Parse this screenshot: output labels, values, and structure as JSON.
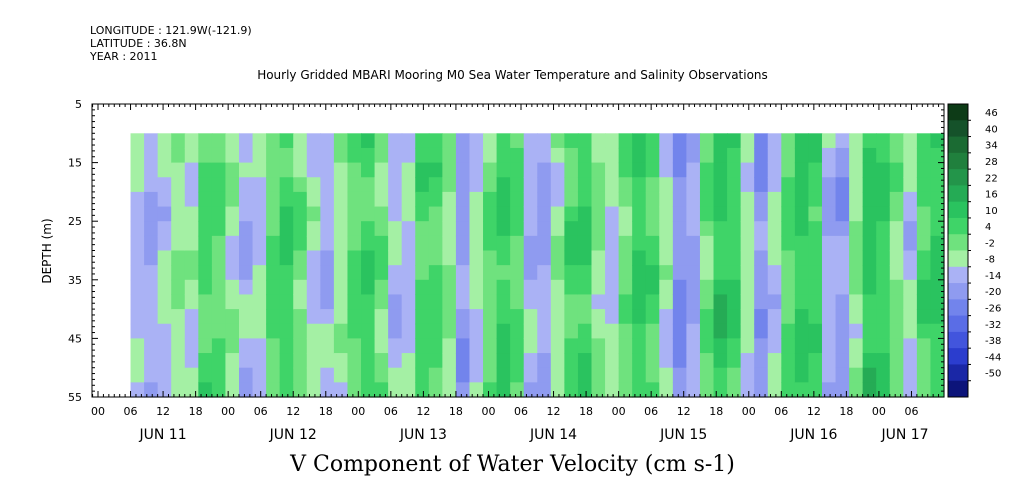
{
  "header": {
    "longitude": "LONGITUDE : 121.9W(-121.9)",
    "latitude": "LATITUDE : 36.8N",
    "year": "YEAR : 2011",
    "title": "Hourly Gridded MBARI Mooring M0 Sea Water Temperature and Salinity Observations"
  },
  "chart_data": {
    "type": "heatmap",
    "title": "Hourly Gridded MBARI Mooring M0 Sea Water Temperature and Salinity Observations",
    "xlabel": "",
    "ylabel": "DEPTH (m)",
    "variable_label": "V Component of Water Velocity (cm s-1)",
    "ylim": [
      55,
      5
    ],
    "y_ticks": [
      "5",
      "15",
      "25",
      "35",
      "45",
      "55"
    ],
    "x_hour_ticks": [
      "00",
      "06",
      "12",
      "18",
      "00",
      "06",
      "12",
      "18",
      "00",
      "06",
      "12",
      "18",
      "00",
      "06",
      "12",
      "18",
      "00",
      "06",
      "12",
      "18",
      "00",
      "06",
      "12",
      "18",
      "00",
      "06"
    ],
    "x_day_labels": [
      "JUN 11",
      "JUN 12",
      "JUN 13",
      "JUN 14",
      "JUN 15",
      "JUN 16",
      "JUN 17"
    ],
    "data_start_hour": 6,
    "data_depth_range": [
      10,
      55
    ],
    "colorbar_labels": [
      "46",
      "40",
      "34",
      "28",
      "22",
      "16",
      "10",
      "4",
      "-2",
      "-8",
      "-14",
      "-20",
      "-26",
      "-32",
      "-38",
      "-44",
      "-50"
    ],
    "colorbar_colors": [
      "#0d3b17",
      "#15522a",
      "#1b6b33",
      "#20803d",
      "#23954a",
      "#25ab55",
      "#2ac35f",
      "#3fd468",
      "#6fe27e",
      "#a4f0a4",
      "#aab2f5",
      "#8f9bf0",
      "#7284ec",
      "#5a6de6",
      "#4255dd",
      "#2b3dce",
      "#1a27a6",
      "#0c147a"
    ],
    "columns_v": [
      -10,
      -14,
      -9,
      -3,
      -6,
      5,
      4,
      -4,
      -12,
      -8,
      4,
      8,
      2,
      -7,
      -12,
      -5,
      3,
      7,
      1,
      -10,
      -9,
      6,
      5,
      -2,
      -16,
      -8,
      3,
      9,
      4,
      -11,
      -14,
      -4,
      7,
      8,
      -3,
      -9,
      2,
      10,
      6,
      -6,
      -20,
      -14,
      2,
      12,
      8,
      -5,
      -18,
      -9,
      4,
      10,
      7,
      -12,
      -16,
      -3,
      12,
      8,
      -1,
      -9,
      6,
      11
    ]
  },
  "footer": {
    "label": "V Component of Water Velocity (cm s-1)"
  }
}
